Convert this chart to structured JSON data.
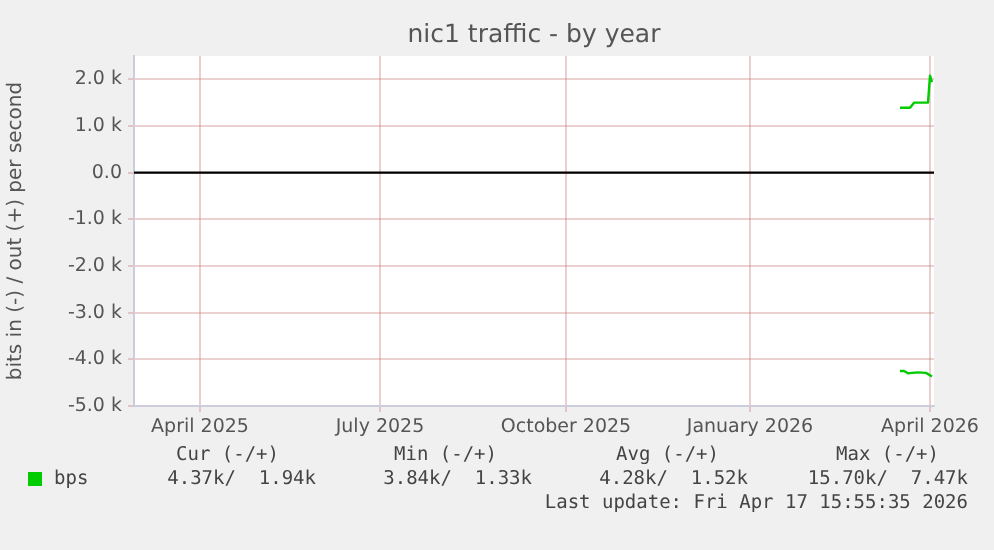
{
  "chart_data": {
    "type": "line",
    "title": "nic1 traffic - by year",
    "ylabel": "bits in (-) / out (+) per second",
    "xlim": [
      "2025-03-13",
      "2026-04-17"
    ],
    "xticks": [
      {
        "value": "2025-04-15",
        "label": "April 2025"
      },
      {
        "value": "2025-07-14",
        "label": "July 2025"
      },
      {
        "value": "2025-10-15",
        "label": "October 2025"
      },
      {
        "value": "2026-01-15",
        "label": "January 2026"
      },
      {
        "value": "2026-04-15",
        "label": "April 2026"
      }
    ],
    "ylim": [
      -5000,
      2500
    ],
    "yticks": [
      {
        "value": -5000,
        "label": "-5.0 k"
      },
      {
        "value": -4000,
        "label": "-4.0 k"
      },
      {
        "value": -3000,
        "label": "-3.0 k"
      },
      {
        "value": -2000,
        "label": "-2.0 k"
      },
      {
        "value": -1000,
        "label": "-1.0 k"
      },
      {
        "value": 0,
        "label": "0.0"
      },
      {
        "value": 1000,
        "label": "1.0 k"
      },
      {
        "value": 2000,
        "label": "2.0 k"
      }
    ],
    "series": [
      {
        "name": "bps",
        "color": "#00cc00",
        "x": [
          "2026-03-31",
          "2026-04-05",
          "2026-04-07",
          "2026-04-13",
          "2026-04-14",
          "2026-04-15",
          "2026-04-16"
        ],
        "values": [
          1390,
          1390,
          1500,
          1500,
          1500,
          2080,
          1940
        ]
      },
      {
        "color": "#00cc00",
        "x": [
          "2026-03-31",
          "2026-04-02",
          "2026-04-04",
          "2026-04-06",
          "2026-04-09",
          "2026-04-13",
          "2026-04-16"
        ],
        "values": [
          -4250,
          -4250,
          -4300,
          -4290,
          -4280,
          -4290,
          -4370
        ]
      }
    ],
    "ref_lines": [
      {
        "axis": "y",
        "value": 0,
        "color": "#000000"
      }
    ],
    "grid": true,
    "legend": "bottom left",
    "marker": "none",
    "line_style": "solid",
    "annotations": [
      "Cur (-/+)",
      "Min (-/+)",
      "Avg (-/+)",
      "Max (-/+)",
      "4.37k/  1.94k",
      "3.84k/  1.33k",
      "4.28k/  1.52k",
      "15.70k/  7.47k",
      "Last update: Fri Apr 17 15:55:35 2026"
    ]
  }
}
